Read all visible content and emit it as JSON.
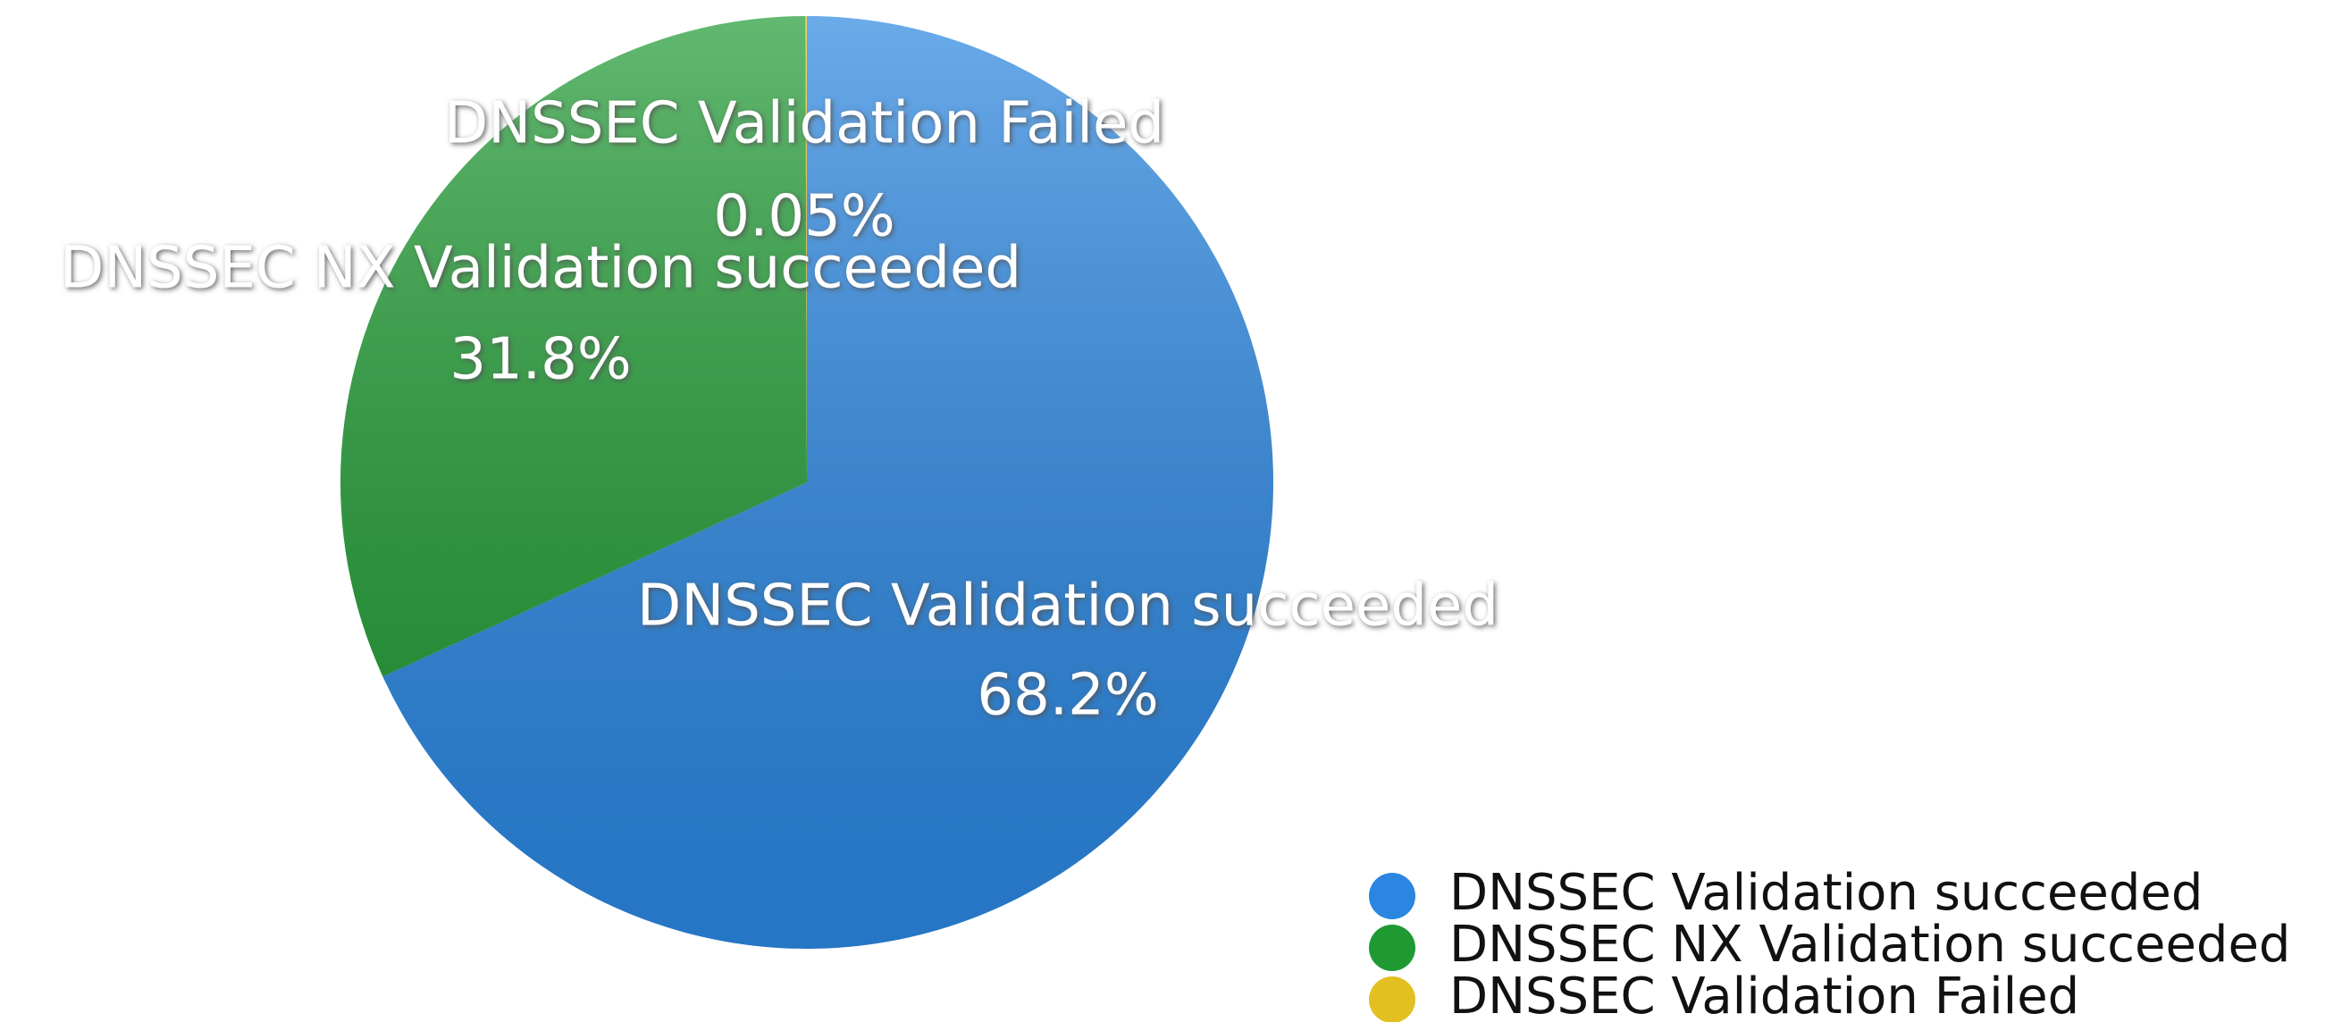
{
  "chart_data": {
    "type": "pie",
    "categories": [
      "DNSSEC Validation succeeded",
      "DNSSEC NX Validation succeeded",
      "DNSSEC Validation Failed"
    ],
    "values": [
      68.2,
      31.8,
      0.05
    ],
    "value_labels": [
      "68.2%",
      "31.8%",
      "0.05%"
    ],
    "colors": [
      "#2a86e0",
      "#1f9a33",
      "#e2c020"
    ],
    "legend": "bottom-right"
  }
}
